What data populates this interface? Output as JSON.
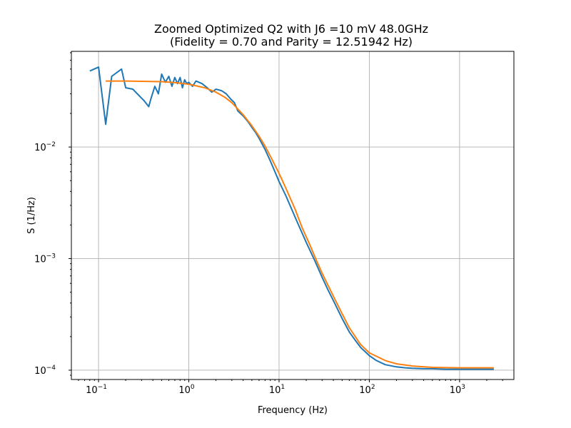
{
  "chart_data": {
    "type": "line",
    "title_line1": "Zoomed Optimized Q2 with J6 =10 mV 48.0GHz",
    "title_line2": "(Fidelity = 0.70 and Parity = 12.51942 Hz)",
    "xlabel": "Frequency (Hz)",
    "ylabel": "S (1/Hz)",
    "xscale": "log",
    "yscale": "log",
    "xlim": [
      0.05,
      4000
    ],
    "ylim": [
      8.25e-05,
      0.072
    ],
    "grid": true,
    "x_ticks": [
      {
        "value": 0.1,
        "base": "10",
        "exp": "−1"
      },
      {
        "value": 1,
        "base": "10",
        "exp": "0"
      },
      {
        "value": 10,
        "base": "10",
        "exp": "1"
      },
      {
        "value": 100,
        "base": "10",
        "exp": "2"
      },
      {
        "value": 1000,
        "base": "10",
        "exp": "3"
      }
    ],
    "y_ticks": [
      {
        "value": 0.0001,
        "base": "10",
        "exp": "−4"
      },
      {
        "value": 0.001,
        "base": "10",
        "exp": "−3"
      },
      {
        "value": 0.01,
        "base": "10",
        "exp": "−2"
      }
    ],
    "series": [
      {
        "color": "#1f77b4",
        "x": [
          0.08,
          0.1,
          0.12,
          0.14,
          0.18,
          0.2,
          0.24,
          0.28,
          0.32,
          0.36,
          0.38,
          0.42,
          0.46,
          0.5,
          0.55,
          0.6,
          0.65,
          0.7,
          0.75,
          0.8,
          0.85,
          0.9,
          0.95,
          1.0,
          1.1,
          1.2,
          1.4,
          1.6,
          1.8,
          2.0,
          2.3,
          2.6,
          2.9,
          3.2,
          3.5,
          4.0,
          4.5,
          5.0,
          5.5,
          6.0,
          7.0,
          8.0,
          9.0,
          10,
          12,
          14,
          16,
          18,
          20,
          25,
          30,
          35,
          40,
          50,
          60,
          70,
          80,
          100,
          120,
          150,
          200,
          250,
          300,
          400,
          500,
          700,
          1000,
          1500,
          2000,
          2400
        ],
        "y": [
          0.048,
          0.052,
          0.016,
          0.043,
          0.05,
          0.034,
          0.033,
          0.029,
          0.026,
          0.023,
          0.027,
          0.035,
          0.03,
          0.045,
          0.038,
          0.043,
          0.035,
          0.042,
          0.037,
          0.042,
          0.034,
          0.04,
          0.037,
          0.038,
          0.035,
          0.039,
          0.037,
          0.034,
          0.031,
          0.033,
          0.032,
          0.03,
          0.027,
          0.025,
          0.021,
          0.019,
          0.017,
          0.015,
          0.0135,
          0.012,
          0.0095,
          0.0075,
          0.006,
          0.0049,
          0.0036,
          0.0027,
          0.0021,
          0.0017,
          0.0014,
          0.00095,
          0.00068,
          0.00052,
          0.00042,
          0.00029,
          0.00022,
          0.000185,
          0.00016,
          0.000135,
          0.000122,
          0.000112,
          0.000107,
          0.000105,
          0.000104,
          0.000103,
          0.000103,
          0.000102,
          0.000102,
          0.000102,
          0.000102,
          0.000102
        ]
      },
      {
        "color": "#ff7f0e",
        "x": [
          0.12,
          0.2,
          0.3,
          0.5,
          0.7,
          1.0,
          1.5,
          2.0,
          2.5,
          3.0,
          4.0,
          5.0,
          6.0,
          7.0,
          8.0,
          10,
          12,
          15,
          18,
          22,
          26,
          30,
          40,
          50,
          60,
          80,
          100,
          150,
          200,
          300,
          500,
          1000,
          2400
        ],
        "y": [
          0.039,
          0.039,
          0.0388,
          0.0385,
          0.0378,
          0.0366,
          0.034,
          0.031,
          0.028,
          0.025,
          0.0195,
          0.0155,
          0.0125,
          0.0102,
          0.0083,
          0.0058,
          0.0042,
          0.0028,
          0.0019,
          0.00132,
          0.00096,
          0.00074,
          0.00046,
          0.00032,
          0.00024,
          0.00017,
          0.000143,
          0.000122,
          0.000114,
          0.000109,
          0.000106,
          0.000105,
          0.000105
        ]
      }
    ]
  }
}
